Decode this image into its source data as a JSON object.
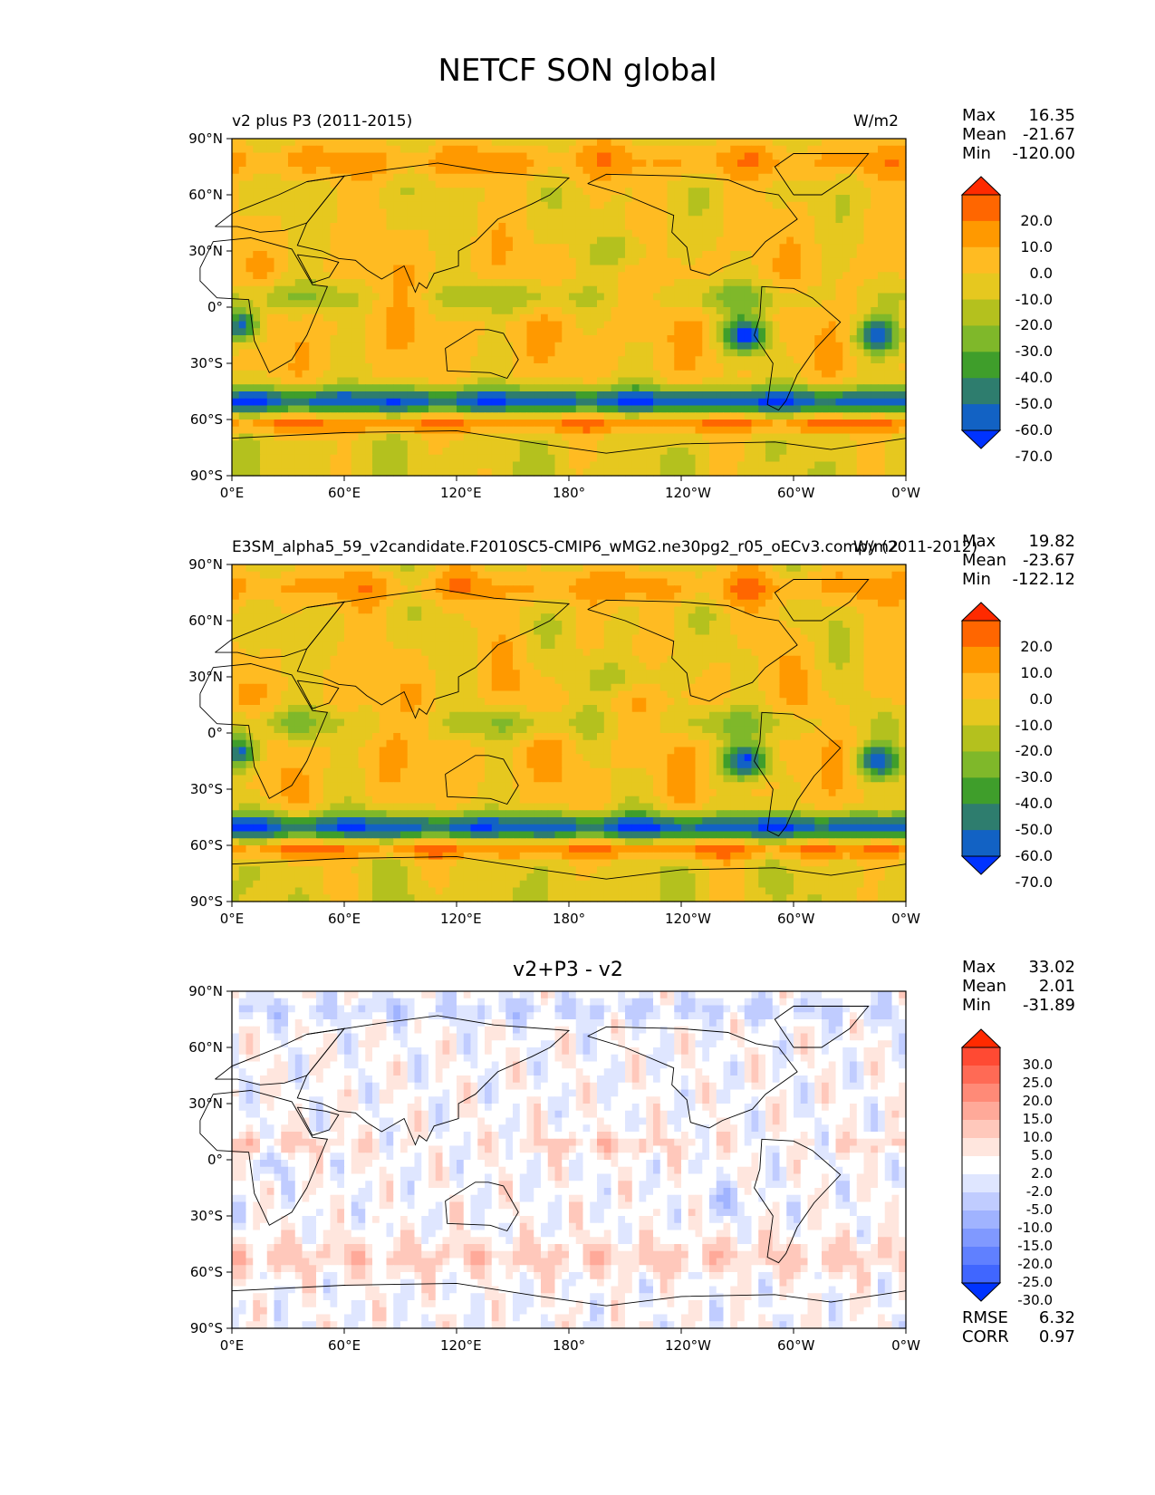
{
  "figure": {
    "title": "NETCF SON global"
  },
  "chart_data": [
    {
      "type": "heatmap",
      "kind": "geographic contour map",
      "left_title": "v2 plus P3 (2011-2015)",
      "right_title": "W/m2",
      "stats": {
        "max_label": "Max",
        "max": "16.35",
        "mean_label": "Mean",
        "mean": "-21.67",
        "min_label": "Min",
        "min": "-120.00"
      },
      "x_ticks": [
        "0°E",
        "60°E",
        "120°E",
        "180°",
        "120°W",
        "60°W",
        "0°W"
      ],
      "y_ticks": [
        "90°N",
        "60°N",
        "30°N",
        "0°",
        "30°S",
        "60°S",
        "90°S"
      ],
      "colorbar": {
        "levels": [
          "20.0",
          "10.0",
          "0.0",
          "-10.0",
          "-20.0",
          "-30.0",
          "-40.0",
          "-50.0",
          "-60.0",
          "-70.0"
        ],
        "colors": [
          "#ff2a00",
          "#ff6600",
          "#ff9900",
          "#ffbb22",
          "#e6c81f",
          "#b4c11e",
          "#7fb82a",
          "#3f9e2b",
          "#2e7d6e",
          "#1262c4",
          "#0033ff"
        ]
      }
    },
    {
      "type": "heatmap",
      "kind": "geographic contour map",
      "left_title": "E3SM_alpha5_59_v2candidate.F2010SC5-CMIP6_wMG2.ne30pg2_r05_oECv3.compy (2011-2012)",
      "right_title": "W/m2",
      "stats": {
        "max_label": "Max",
        "max": "19.82",
        "mean_label": "Mean",
        "mean": "-23.67",
        "min_label": "Min",
        "min": "-122.12"
      },
      "x_ticks": [
        "0°E",
        "60°E",
        "120°E",
        "180°",
        "120°W",
        "60°W",
        "0°W"
      ],
      "y_ticks": [
        "90°N",
        "60°N",
        "30°N",
        "0°",
        "30°S",
        "60°S",
        "90°S"
      ],
      "colorbar": {
        "levels": [
          "20.0",
          "10.0",
          "0.0",
          "-10.0",
          "-20.0",
          "-30.0",
          "-40.0",
          "-50.0",
          "-60.0",
          "-70.0"
        ],
        "colors": [
          "#ff2a00",
          "#ff6600",
          "#ff9900",
          "#ffbb22",
          "#e6c81f",
          "#b4c11e",
          "#7fb82a",
          "#3f9e2b",
          "#2e7d6e",
          "#1262c4",
          "#0033ff"
        ]
      }
    },
    {
      "type": "heatmap",
      "kind": "geographic difference contour map",
      "center_title": "v2+P3 - v2",
      "stats": {
        "max_label": "Max",
        "max": "33.02",
        "mean_label": "Mean",
        "mean": "2.01",
        "min_label": "Min",
        "min": "-31.89"
      },
      "metrics": {
        "rmse_label": "RMSE",
        "rmse": "6.32",
        "corr_label": "CORR",
        "corr": "0.97"
      },
      "x_ticks": [
        "0°E",
        "60°E",
        "120°E",
        "180°",
        "120°W",
        "60°W",
        "0°W"
      ],
      "y_ticks": [
        "90°N",
        "60°N",
        "30°N",
        "0°",
        "30°S",
        "60°S",
        "90°S"
      ],
      "colorbar": {
        "levels": [
          "30.0",
          "25.0",
          "20.0",
          "15.0",
          "10.0",
          "5.0",
          "2.0",
          "-2.0",
          "-5.0",
          "-10.0",
          "-15.0",
          "-20.0",
          "-25.0",
          "-30.0"
        ],
        "colors": [
          "#ff2a00",
          "#ff4a33",
          "#ff6a55",
          "#ff8a77",
          "#ffa999",
          "#ffc8bb",
          "#ffe6de",
          "#ffffff",
          "#dfe6ff",
          "#c0ccff",
          "#a0b3ff",
          "#8099ff",
          "#6080ff",
          "#4066ff",
          "#0033ff"
        ]
      }
    }
  ]
}
